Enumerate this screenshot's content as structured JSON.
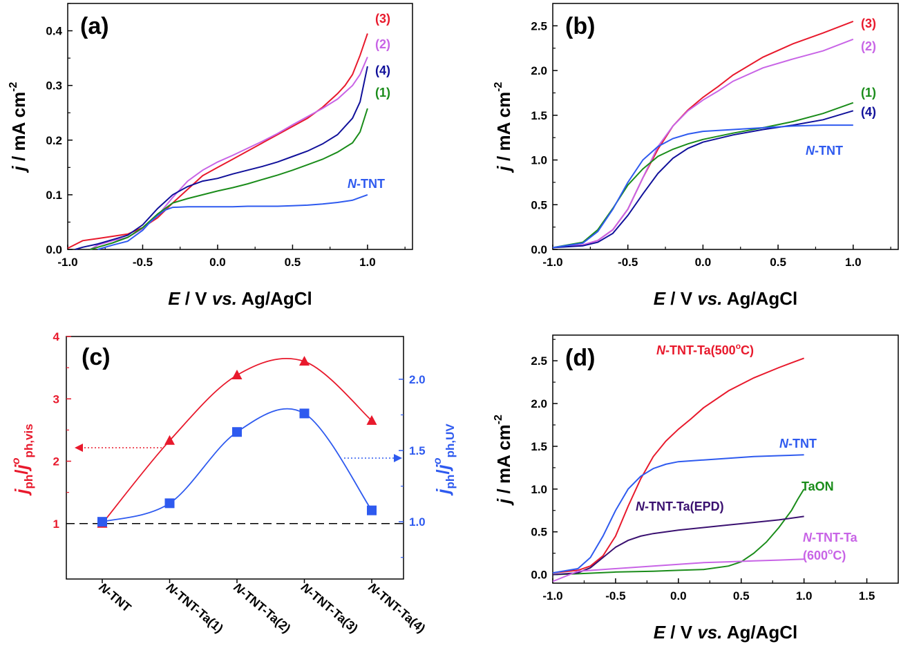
{
  "chart_data": [
    {
      "panel": "(a)",
      "type": "line",
      "xlabel": {
        "sym": "E",
        "unit": " / V ",
        "vs": "vs.",
        "ref": " Ag/AgCl"
      },
      "ylabel": {
        "sym": "j",
        "unit": " / mA cm",
        "sup": "-2"
      },
      "xlim": [
        -1.0,
        1.3
      ],
      "ylim": [
        0,
        0.45
      ],
      "xticks": [
        "-1.0",
        "-0.5",
        "0.0",
        "0.5",
        "1.0"
      ],
      "xtick_values": [
        -1.0,
        -0.5,
        0.0,
        0.5,
        1.0
      ],
      "yticks": [
        "0.0",
        "0.1",
        "0.2",
        "0.3",
        "0.4"
      ],
      "ytick_values": [
        0,
        0.1,
        0.2,
        0.3,
        0.4
      ],
      "series": [
        {
          "label": "(3)",
          "color": "#e8192c",
          "x": [
            -1.0,
            -0.9,
            -0.8,
            -0.7,
            -0.6,
            -0.5,
            -0.4,
            -0.3,
            -0.2,
            -0.1,
            0,
            0.1,
            0.2,
            0.3,
            0.4,
            0.5,
            0.6,
            0.7,
            0.8,
            0.85,
            0.9,
            0.95,
            1.0
          ],
          "y": [
            0.002,
            0.016,
            0.02,
            0.024,
            0.028,
            0.04,
            0.058,
            0.085,
            0.11,
            0.135,
            0.15,
            0.165,
            0.18,
            0.195,
            0.21,
            0.225,
            0.24,
            0.26,
            0.285,
            0.3,
            0.32,
            0.355,
            0.395
          ]
        },
        {
          "label": "(2)",
          "color": "#c864e6",
          "x": [
            -0.85,
            -0.8,
            -0.7,
            -0.6,
            -0.5,
            -0.4,
            -0.3,
            -0.2,
            -0.1,
            0,
            0.1,
            0.2,
            0.3,
            0.4,
            0.5,
            0.6,
            0.7,
            0.8,
            0.9,
            0.95,
            1.0
          ],
          "y": [
            0,
            0.008,
            0.016,
            0.022,
            0.038,
            0.062,
            0.095,
            0.125,
            0.145,
            0.16,
            0.172,
            0.185,
            0.198,
            0.212,
            0.228,
            0.243,
            0.258,
            0.275,
            0.3,
            0.32,
            0.352
          ]
        },
        {
          "label": "(4)",
          "color": "#10109a",
          "x": [
            -0.95,
            -0.9,
            -0.8,
            -0.7,
            -0.6,
            -0.5,
            -0.4,
            -0.3,
            -0.2,
            -0.1,
            0,
            0.1,
            0.2,
            0.3,
            0.4,
            0.5,
            0.6,
            0.7,
            0.8,
            0.9,
            0.95,
            1.0
          ],
          "y": [
            0,
            0.004,
            0.01,
            0.018,
            0.026,
            0.045,
            0.075,
            0.1,
            0.115,
            0.125,
            0.13,
            0.138,
            0.145,
            0.152,
            0.16,
            0.17,
            0.18,
            0.193,
            0.21,
            0.24,
            0.27,
            0.335
          ]
        },
        {
          "label": "(1)",
          "color": "#1a8c1a",
          "x": [
            -0.85,
            -0.8,
            -0.7,
            -0.6,
            -0.5,
            -0.4,
            -0.3,
            -0.2,
            -0.1,
            0,
            0.1,
            0.2,
            0.3,
            0.4,
            0.5,
            0.6,
            0.7,
            0.8,
            0.9,
            0.95,
            1.0
          ],
          "y": [
            0,
            0.004,
            0.012,
            0.022,
            0.04,
            0.065,
            0.085,
            0.093,
            0.1,
            0.107,
            0.113,
            0.12,
            0.128,
            0.136,
            0.145,
            0.155,
            0.165,
            0.178,
            0.195,
            0.215,
            0.258
          ]
        },
        {
          "label": "N-TNT",
          "labelItalic": "N",
          "labelRest": "-TNT",
          "color": "#2e5aef",
          "x": [
            -0.8,
            -0.7,
            -0.6,
            -0.5,
            -0.45,
            -0.4,
            -0.35,
            -0.3,
            -0.2,
            -0.1,
            0,
            0.1,
            0.2,
            0.3,
            0.4,
            0.5,
            0.6,
            0.7,
            0.8,
            0.9,
            0.95,
            1.0
          ],
          "y": [
            0,
            0.008,
            0.015,
            0.035,
            0.05,
            0.062,
            0.072,
            0.077,
            0.078,
            0.078,
            0.078,
            0.078,
            0.079,
            0.079,
            0.079,
            0.08,
            0.081,
            0.083,
            0.086,
            0.09,
            0.095,
            0.1
          ]
        }
      ]
    },
    {
      "panel": "(b)",
      "type": "line",
      "xlabel": {
        "sym": "E",
        "unit": " / V ",
        "vs": "vs.",
        "ref": " Ag/AgCl"
      },
      "ylabel": {
        "sym": "j",
        "unit": " / mA cm",
        "sup": "-2"
      },
      "xlim": [
        -1.0,
        1.3
      ],
      "ylim": [
        0,
        2.75
      ],
      "xticks": [
        "-1.0",
        "-0.5",
        "0.0",
        "0.5",
        "1.0"
      ],
      "xtick_values": [
        -1.0,
        -0.5,
        0.0,
        0.5,
        1.0
      ],
      "yticks": [
        "0.0",
        "0.5",
        "1.0",
        "1.5",
        "2.0",
        "2.5"
      ],
      "ytick_values": [
        0,
        0.5,
        1.0,
        1.5,
        2.0,
        2.5
      ],
      "series": [
        {
          "label": "(3)",
          "color": "#e8192c",
          "x": [
            -1.0,
            -0.8,
            -0.7,
            -0.6,
            -0.5,
            -0.4,
            -0.3,
            -0.2,
            -0.1,
            0,
            0.1,
            0.2,
            0.4,
            0.6,
            0.8,
            1.0
          ],
          "y": [
            0.02,
            0.05,
            0.1,
            0.22,
            0.45,
            0.8,
            1.12,
            1.38,
            1.56,
            1.7,
            1.82,
            1.95,
            2.15,
            2.3,
            2.42,
            2.55
          ]
        },
        {
          "label": "(2)",
          "color": "#c864e6",
          "x": [
            -1.0,
            -0.8,
            -0.7,
            -0.6,
            -0.5,
            -0.4,
            -0.3,
            -0.2,
            -0.1,
            0,
            0.1,
            0.2,
            0.4,
            0.6,
            0.8,
            1.0
          ],
          "y": [
            0.02,
            0.05,
            0.1,
            0.22,
            0.45,
            0.8,
            1.15,
            1.38,
            1.55,
            1.67,
            1.77,
            1.88,
            2.03,
            2.13,
            2.22,
            2.35
          ]
        },
        {
          "label": "(1)",
          "color": "#1a8c1a",
          "x": [
            -1.0,
            -0.8,
            -0.7,
            -0.6,
            -0.5,
            -0.4,
            -0.3,
            -0.2,
            -0.1,
            0,
            0.2,
            0.4,
            0.6,
            0.8,
            1.0
          ],
          "y": [
            0.02,
            0.08,
            0.22,
            0.46,
            0.72,
            0.9,
            1.04,
            1.12,
            1.18,
            1.23,
            1.3,
            1.36,
            1.43,
            1.52,
            1.64
          ]
        },
        {
          "label": "(4)",
          "color": "#10109a",
          "x": [
            -1.0,
            -0.8,
            -0.7,
            -0.6,
            -0.5,
            -0.4,
            -0.3,
            -0.2,
            -0.1,
            0,
            0.2,
            0.4,
            0.6,
            0.8,
            1.0
          ],
          "y": [
            0.02,
            0.04,
            0.08,
            0.18,
            0.38,
            0.62,
            0.85,
            1.02,
            1.13,
            1.2,
            1.28,
            1.34,
            1.39,
            1.45,
            1.55
          ]
        },
        {
          "label": "N-TNT",
          "labelItalic": "N",
          "labelRest": "-TNT",
          "color": "#2e5aef",
          "x": [
            -1.0,
            -0.8,
            -0.7,
            -0.6,
            -0.5,
            -0.4,
            -0.3,
            -0.2,
            -0.1,
            0,
            0.2,
            0.4,
            0.6,
            0.8,
            1.0
          ],
          "y": [
            0.02,
            0.07,
            0.2,
            0.45,
            0.75,
            1.0,
            1.15,
            1.24,
            1.29,
            1.32,
            1.34,
            1.36,
            1.38,
            1.39,
            1.39
          ]
        }
      ]
    },
    {
      "panel": "(c)",
      "type": "line",
      "categories_italic": [
        "N",
        "N",
        "N",
        "N",
        "N"
      ],
      "categories_rest": [
        "-TNT",
        "-TNT-Ta(1)",
        "-TNT-Ta(2)",
        "-TNT-Ta(3)",
        "-TNT-Ta(4)"
      ],
      "ylim_left": [
        0,
        4
      ],
      "ylim_right": [
        0.55,
        2.3
      ],
      "yticks_left": [
        "1",
        "2",
        "3",
        "4"
      ],
      "ytick_values_left": [
        1,
        2,
        3,
        4
      ],
      "yticks_right": [
        "1.0",
        "1.5",
        "2.0"
      ],
      "ytick_values_right": [
        1.0,
        1.5,
        2.0
      ],
      "ylabel_left": {
        "main": "j",
        "sub1": "ph",
        "slash": "/",
        "main2": "j",
        "sup2": "o",
        "sub2": "ph,vis"
      },
      "ylabel_right": {
        "main": "j",
        "sub1": "ph",
        "slash": "/",
        "main2": "j",
        "sup2": "o",
        "sub2": "ph,UV"
      },
      "reference_line": 1,
      "series": [
        {
          "name": "vis",
          "axis": "left",
          "marker": "triangle",
          "color": "#e8192c",
          "values": [
            1.0,
            2.33,
            3.38,
            3.6,
            2.65
          ]
        },
        {
          "name": "UV",
          "axis": "right",
          "marker": "square",
          "color": "#2e5aef",
          "values": [
            1.0,
            1.13,
            1.63,
            1.76,
            1.08
          ]
        }
      ]
    },
    {
      "panel": "(d)",
      "type": "line",
      "xlabel": {
        "sym": "E",
        "unit": " / V ",
        "vs": "vs.",
        "ref": " Ag/AgCl"
      },
      "ylabel": {
        "sym": "j",
        "unit": " / mA cm",
        "sup": "-2"
      },
      "xlim": [
        -1.0,
        1.75
      ],
      "ylim": [
        -0.1,
        2.8
      ],
      "xticks": [
        "-1.0",
        "-0.5",
        "0.0",
        "0.5",
        "1.0",
        "1.5"
      ],
      "xtick_values": [
        -1.0,
        -0.5,
        0.0,
        0.5,
        1.0,
        1.5
      ],
      "yticks": [
        "0.0",
        "0.5",
        "1.0",
        "1.5",
        "2.0",
        "2.5"
      ],
      "ytick_values": [
        0,
        0.5,
        1.0,
        1.5,
        2.0,
        2.5
      ],
      "series": [
        {
          "label": "N-TNT-Ta(500°C)",
          "labelItalic": "N",
          "labelRest": "-TNT-Ta(500",
          "labelSup": "o",
          "labelEnd": "C)",
          "color": "#e8192c",
          "x": [
            -1.0,
            -0.8,
            -0.7,
            -0.6,
            -0.5,
            -0.4,
            -0.3,
            -0.2,
            -0.1,
            0,
            0.1,
            0.2,
            0.4,
            0.6,
            0.8,
            1.0
          ],
          "y": [
            0.02,
            0.05,
            0.1,
            0.22,
            0.45,
            0.8,
            1.12,
            1.38,
            1.56,
            1.7,
            1.82,
            1.95,
            2.15,
            2.3,
            2.42,
            2.53
          ]
        },
        {
          "label": "N-TNT",
          "labelItalic": "N",
          "labelRest": "-TNT",
          "color": "#2e5aef",
          "x": [
            -1.0,
            -0.8,
            -0.7,
            -0.6,
            -0.5,
            -0.4,
            -0.3,
            -0.2,
            -0.1,
            0,
            0.2,
            0.4,
            0.6,
            0.8,
            1.0
          ],
          "y": [
            0.02,
            0.07,
            0.2,
            0.45,
            0.75,
            1.0,
            1.15,
            1.24,
            1.29,
            1.32,
            1.34,
            1.36,
            1.38,
            1.39,
            1.4
          ]
        },
        {
          "label": "TaON",
          "color": "#1a8c1a",
          "x": [
            -1.0,
            -0.8,
            -0.5,
            -0.2,
            0,
            0.2,
            0.4,
            0.5,
            0.6,
            0.7,
            0.8,
            0.9,
            0.95,
            1.0
          ],
          "y": [
            0.0,
            0.01,
            0.03,
            0.04,
            0.05,
            0.06,
            0.1,
            0.15,
            0.25,
            0.38,
            0.55,
            0.75,
            0.88,
            1.0
          ]
        },
        {
          "label": "N-TNT-Ta(EPD)",
          "labelItalic": "N",
          "labelRest": "-TNT-Ta(EPD)",
          "color": "#3a1070",
          "x": [
            -1.0,
            -0.8,
            -0.7,
            -0.6,
            -0.5,
            -0.4,
            -0.3,
            -0.2,
            0,
            0.2,
            0.4,
            0.6,
            0.8,
            1.0
          ],
          "y": [
            0.0,
            0.02,
            0.08,
            0.2,
            0.32,
            0.4,
            0.45,
            0.48,
            0.52,
            0.55,
            0.58,
            0.61,
            0.64,
            0.68
          ]
        },
        {
          "label": "N-TNT-Ta (600°C)",
          "labelItalic": "N",
          "labelRest": "-TNT-Ta",
          "labelLine2": "(600",
          "labelSup": "o",
          "labelEnd": "C)",
          "color": "#c864e6",
          "x": [
            -1.0,
            -0.8,
            -0.6,
            -0.4,
            -0.2,
            0,
            0.2,
            0.4,
            0.6,
            0.8,
            1.0
          ],
          "y": [
            -0.08,
            0.04,
            0.06,
            0.08,
            0.1,
            0.12,
            0.14,
            0.15,
            0.16,
            0.17,
            0.18
          ]
        }
      ]
    }
  ]
}
